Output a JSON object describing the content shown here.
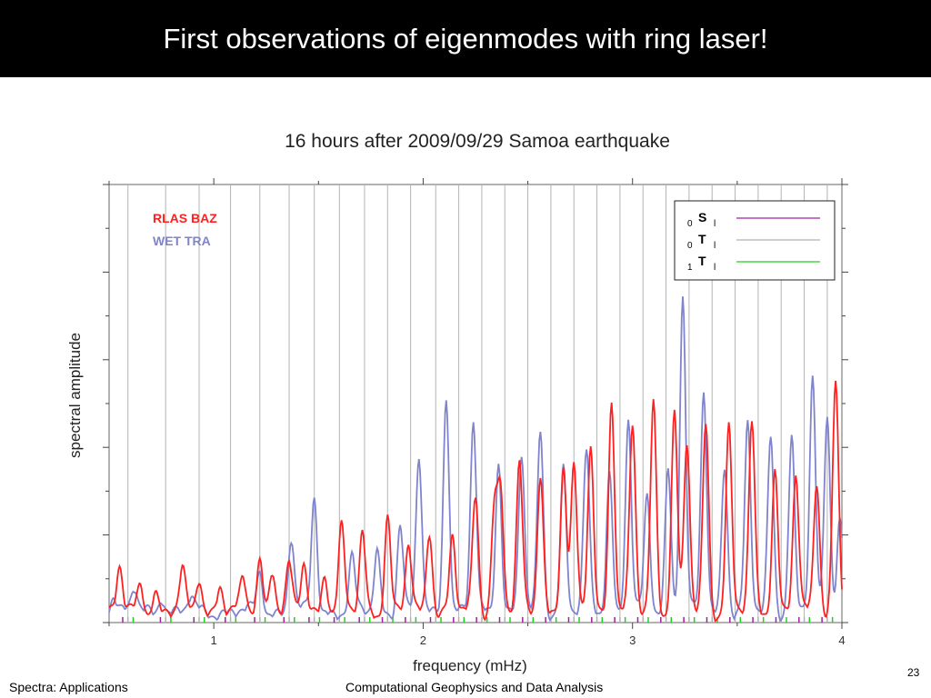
{
  "slide": {
    "title": "First observations of eigenmodes with ring laser!",
    "footer_left": "Spectra: Applications",
    "footer_center": "Computational Geophysics and Data Analysis",
    "page_number": "23"
  },
  "chart_data": {
    "type": "line",
    "title": "16 hours after 2009/09/29 Samoa earthquake",
    "xlabel": "frequency (mHz)",
    "ylabel": "spectral amplitude",
    "xlim": [
      0.5,
      4.0
    ],
    "ylim": [
      0,
      10
    ],
    "x_ticks": [
      1,
      2,
      3,
      4
    ],
    "x_tick_labels": [
      "1",
      "2",
      "3",
      "4"
    ],
    "grid": "vertical lines at eigenmode frequencies",
    "legend_placement": "top-left (series), top-right (mode box)",
    "legend": [
      {
        "name": "RLAS BAZ",
        "color": "#ff2020"
      },
      {
        "name": "WET TRA",
        "color": "#7f84cc"
      }
    ],
    "mode_legend": [
      {
        "pre": "0",
        "letter": "S",
        "post": "l",
        "color": "#a020a0"
      },
      {
        "pre": "0",
        "letter": "T",
        "post": "l",
        "color": "#b0b0b0"
      },
      {
        "pre": "1",
        "letter": "T",
        "post": "l",
        "color": "#20d020"
      }
    ],
    "eigen_lines": [
      0.59,
      0.77,
      0.93,
      1.08,
      1.22,
      1.36,
      1.48,
      1.6,
      1.72,
      1.83,
      1.94,
      2.06,
      2.17,
      2.28,
      2.39,
      2.5,
      2.61,
      2.72,
      2.83,
      2.94,
      3.05,
      3.16,
      3.27,
      3.38,
      3.49,
      3.6,
      3.71,
      3.82,
      3.93
    ],
    "series": [
      {
        "name": "RLAS BAZ",
        "color": "#ff2020",
        "peaks": [
          [
            0.55,
            1.0
          ],
          [
            0.65,
            0.6
          ],
          [
            0.72,
            0.5
          ],
          [
            0.85,
            0.9
          ],
          [
            0.93,
            0.8
          ],
          [
            1.03,
            0.6
          ],
          [
            1.14,
            0.7
          ],
          [
            1.22,
            1.2
          ],
          [
            1.28,
            1.0
          ],
          [
            1.36,
            1.0
          ],
          [
            1.43,
            1.1
          ],
          [
            1.53,
            0.9
          ],
          [
            1.61,
            1.9
          ],
          [
            1.71,
            1.8
          ],
          [
            1.83,
            2.2
          ],
          [
            1.93,
            1.5
          ],
          [
            2.03,
            1.9
          ],
          [
            2.14,
            1.7
          ],
          [
            2.25,
            2.6
          ],
          [
            2.34,
            2.4
          ],
          [
            2.37,
            2.7
          ],
          [
            2.46,
            3.3
          ],
          [
            2.56,
            3.2
          ],
          [
            2.67,
            3.3
          ],
          [
            2.72,
            3.2
          ],
          [
            2.8,
            3.8
          ],
          [
            2.9,
            4.9
          ],
          [
            3.0,
            4.2
          ],
          [
            3.1,
            4.8
          ],
          [
            3.2,
            4.5
          ],
          [
            3.26,
            3.8
          ],
          [
            3.35,
            4.3
          ],
          [
            3.46,
            4.2
          ],
          [
            3.57,
            4.3
          ],
          [
            3.68,
            3.3
          ],
          [
            3.78,
            3.1
          ],
          [
            3.88,
            3.0
          ],
          [
            3.97,
            5.3
          ]
        ]
      },
      {
        "name": "WET TRA",
        "color": "#7f84cc",
        "peaks": [
          [
            0.52,
            0.4
          ],
          [
            0.62,
            0.5
          ],
          [
            0.75,
            0.4
          ],
          [
            0.89,
            0.3
          ],
          [
            1.22,
            0.9
          ],
          [
            1.37,
            1.7
          ],
          [
            1.48,
            2.6
          ],
          [
            1.66,
            1.2
          ],
          [
            1.78,
            1.4
          ],
          [
            1.89,
            2.0
          ],
          [
            1.98,
            3.5
          ],
          [
            2.11,
            5.0
          ],
          [
            2.24,
            4.3
          ],
          [
            2.36,
            3.5
          ],
          [
            2.47,
            3.6
          ],
          [
            2.56,
            4.1
          ],
          [
            2.67,
            3.3
          ],
          [
            2.78,
            3.6
          ],
          [
            2.89,
            3.2
          ],
          [
            2.98,
            4.4
          ],
          [
            3.07,
            2.6
          ],
          [
            3.17,
            3.3
          ],
          [
            3.24,
            7.2
          ],
          [
            3.34,
            5.0
          ],
          [
            3.44,
            3.4
          ],
          [
            3.55,
            4.2
          ],
          [
            3.66,
            4.0
          ],
          [
            3.76,
            4.0
          ],
          [
            3.86,
            5.3
          ],
          [
            3.93,
            4.5
          ],
          [
            3.99,
            2.2
          ]
        ]
      }
    ],
    "annotations": [
      "RLAS BAZ",
      "WET TRA"
    ]
  }
}
